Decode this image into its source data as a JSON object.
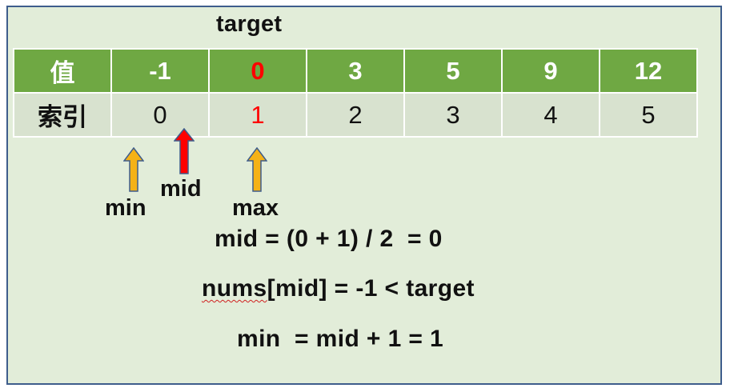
{
  "target_label": "target",
  "array": {
    "value_header": "值",
    "index_header": "索引",
    "values": [
      "-1",
      "0",
      "3",
      "5",
      "9",
      "12"
    ],
    "indexes": [
      "0",
      "1",
      "2",
      "3",
      "4",
      "5"
    ],
    "highlight_index": 1,
    "header_color": "#6fa843",
    "highlight_color": "#ff0000"
  },
  "pointers": {
    "min": {
      "label": "min",
      "at_index": 0,
      "color": "#f5b217"
    },
    "mid": {
      "label": "mid",
      "at_index": 0,
      "color": "#ff0000"
    },
    "max": {
      "label": "max",
      "at_index": 1,
      "color": "#f5b217"
    }
  },
  "equations": {
    "line1": "mid = (0 + 1) / 2  = 0",
    "line2_word": "nums",
    "line2_rest": "[mid] = -1 < target",
    "line3": "min  = mid + 1 = 1"
  }
}
